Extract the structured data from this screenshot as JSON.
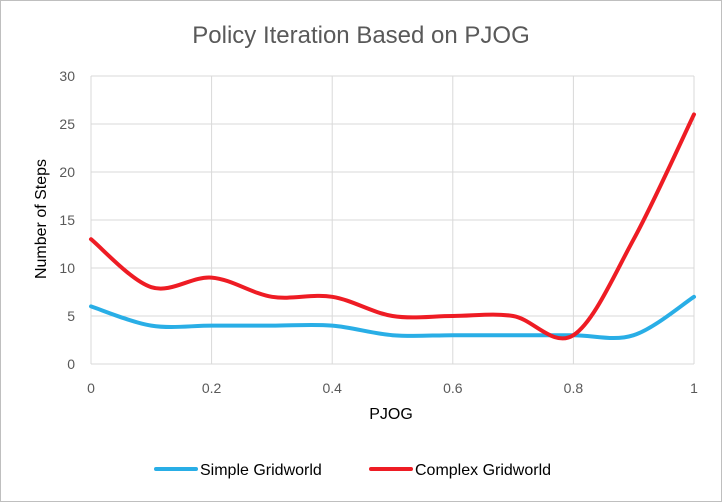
{
  "chart_data": {
    "type": "line",
    "title": "Policy Iteration Based on PJOG",
    "xlabel": "PJOG",
    "ylabel": "Number of Steps",
    "xlim": [
      0,
      1
    ],
    "ylim": [
      0,
      30
    ],
    "x_ticks": [
      "0",
      "0.2",
      "0.4",
      "0.6",
      "0.8",
      "1"
    ],
    "y_ticks": [
      "0",
      "5",
      "10",
      "15",
      "20",
      "25",
      "30"
    ],
    "grid": "on",
    "smoothed": true,
    "legend_position": "bottom",
    "x": [
      0,
      0.1,
      0.2,
      0.3,
      0.4,
      0.5,
      0.6,
      0.7,
      0.8,
      0.9,
      1.0
    ],
    "series": [
      {
        "name": "Simple Gridworld",
        "color": "#29aee6",
        "values": [
          6,
          4,
          4,
          4,
          4,
          3,
          3,
          3,
          3,
          3,
          7
        ]
      },
      {
        "name": "Complex Gridworld",
        "color": "#ee1c24",
        "values": [
          13,
          8,
          9,
          7,
          7,
          5,
          5,
          5,
          3,
          13,
          26
        ]
      }
    ]
  }
}
